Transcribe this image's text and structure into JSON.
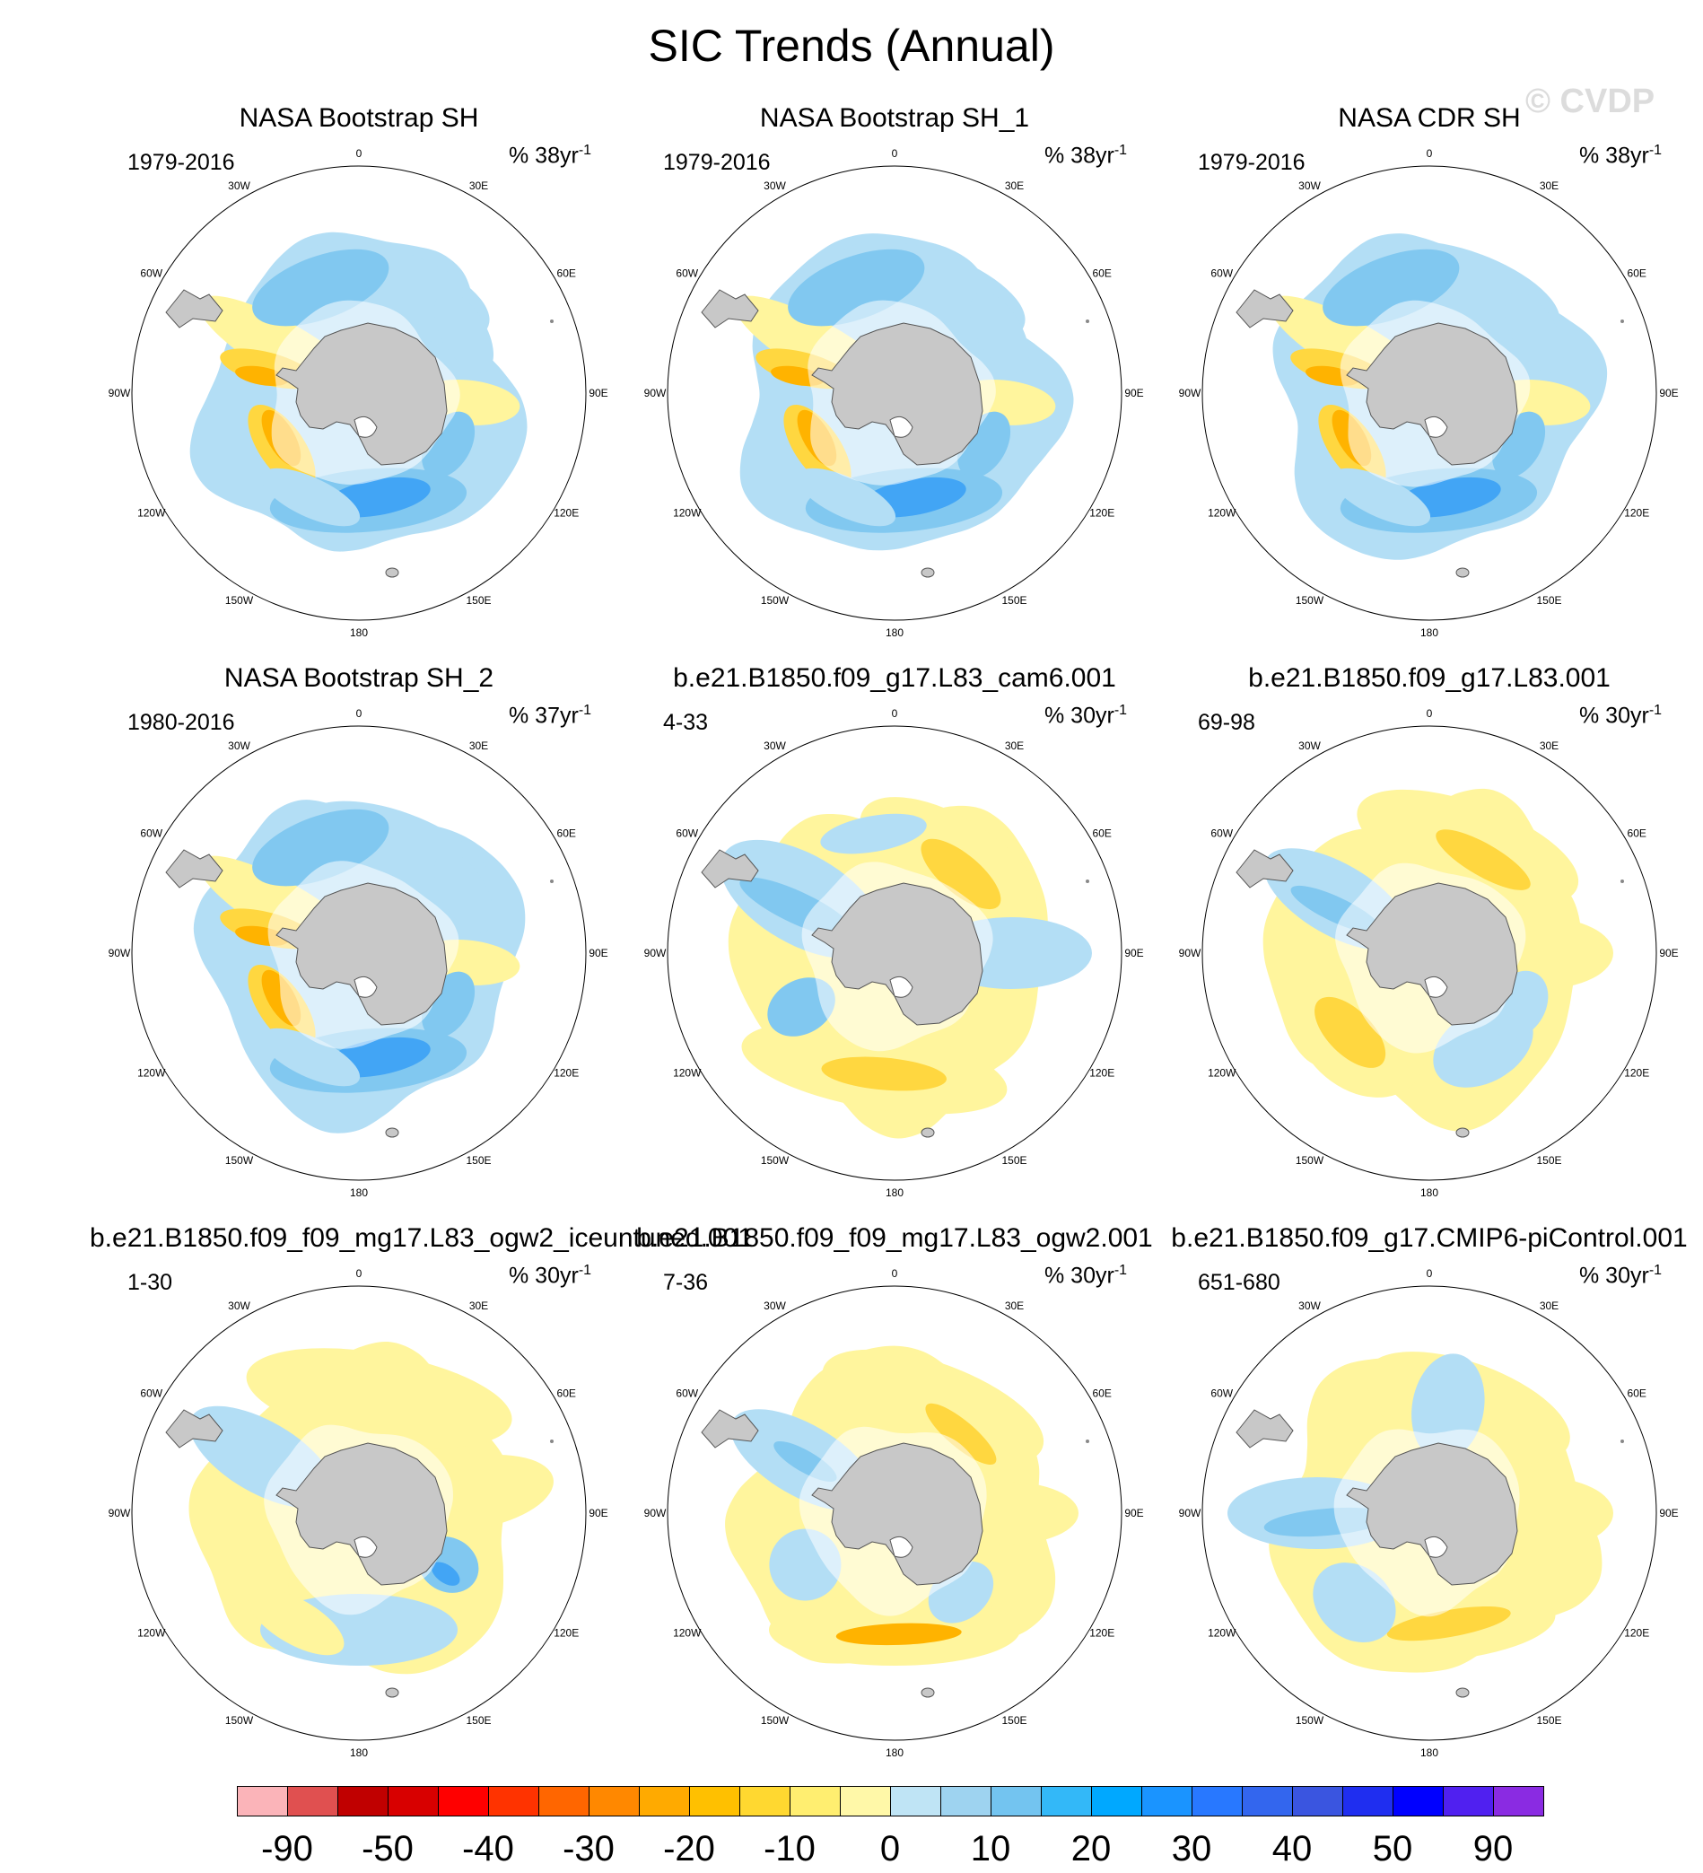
{
  "title": "SIC Trends (Annual)",
  "watermark": "© CVDP",
  "lon_labels": {
    "0": "0",
    "30e": "30E",
    "60e": "60E",
    "90e": "90E",
    "120e": "120E",
    "150e": "150E",
    "180": "180",
    "150w": "150W",
    "120w": "120W",
    "90w": "90W",
    "60w": "60W",
    "30w": "30W"
  },
  "panels": [
    {
      "title": "NASA Bootstrap SH",
      "years": "1979-2016",
      "units": "% 38yr",
      "pattern": "obs"
    },
    {
      "title": "NASA Bootstrap SH_1",
      "years": "1979-2016",
      "units": "% 38yr",
      "pattern": "obs"
    },
    {
      "title": "NASA CDR SH",
      "years": "1979-2016",
      "units": "% 38yr",
      "pattern": "obs"
    },
    {
      "title": "NASA Bootstrap SH_2",
      "years": "1980-2016",
      "units": "% 37yr",
      "pattern": "obs"
    },
    {
      "title": "b.e21.B1850.f09_g17.L83_cam6.001",
      "years": "4-33",
      "units": "% 30yr",
      "pattern": "modelA"
    },
    {
      "title": "b.e21.B1850.f09_g17.L83.001",
      "years": "69-98",
      "units": "% 30yr",
      "pattern": "modelB"
    },
    {
      "title": "b.e21.B1850.f09_f09_mg17.L83_ogw2_iceuntuned.001",
      "years": "1-30",
      "units": "% 30yr",
      "pattern": "modelC"
    },
    {
      "title": "b.e21.B1850.f09_f09_mg17.L83_ogw2.001",
      "years": "7-36",
      "units": "% 30yr",
      "pattern": "modelD"
    },
    {
      "title": "b.e21.B1850.f09_g17.CMIP6-piControl.001",
      "years": "651-680",
      "units": "% 30yr",
      "pattern": "modelE"
    }
  ],
  "units_exponent": "-1",
  "colorbar": {
    "colors": [
      "#fbb4b9",
      "#e05050",
      "#c00000",
      "#d80000",
      "#ff0000",
      "#ff3300",
      "#ff6600",
      "#ff8800",
      "#ffaa00",
      "#ffc000",
      "#ffd830",
      "#ffee70",
      "#fff8a8",
      "#bfe4f5",
      "#9ed3f0",
      "#73c4f0",
      "#33b8f8",
      "#00a8ff",
      "#1a94ff",
      "#2878ff",
      "#3366ee",
      "#3a55e0",
      "#1f2ef0",
      "#0000ff",
      "#5020f0",
      "#8a2be2"
    ],
    "labels": [
      "-90",
      "-50",
      "-40",
      "-30",
      "-20",
      "-10",
      "0",
      "10",
      "20",
      "30",
      "40",
      "50",
      "90"
    ]
  },
  "colors": {
    "land": "#c8c8c8",
    "pos_light": "#fff59d",
    "pos_mid": "#ffd740",
    "pos_strong": "#ffb300",
    "neg_light": "#b3def5",
    "neg_mid": "#81c8f0",
    "neg_strong": "#42a5f5"
  }
}
